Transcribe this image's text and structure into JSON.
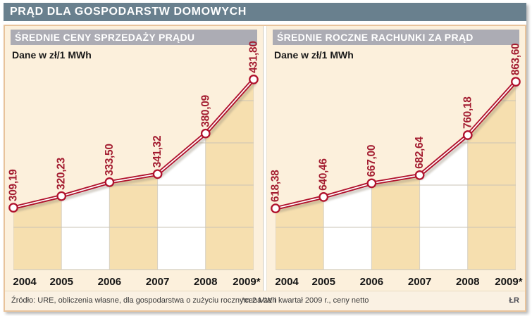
{
  "title": "PRĄD DLA GOSPODARSTW DOMOWYCH",
  "footer": {
    "source": "Źródło: URE, obliczenia własne, dla gospodarstwa o zużyciu rocznym 2 MWh",
    "note": "*cena za I kwartał 2009 r., ceny netto",
    "credit": "ŁR"
  },
  "colors": {
    "line": "#B0122D",
    "value_label": "#A31C30",
    "band_tan": "#F6DFAF",
    "band_white": "#FFFFFF",
    "band_edge": "#D9D2C2",
    "grid": "#C9C3B5",
    "title_bar": "#69808E",
    "chart_header": "#ACACB4",
    "panel_bg": "#FCF0DC",
    "panel_border": "#E8C39B"
  },
  "chart_data": [
    {
      "type": "line",
      "title": "ŚREDNIE CENY SPRZEDAŻY PRĄDU",
      "subtitle": "Dane w zł/1 MWh",
      "categories": [
        "2004",
        "2005",
        "2006",
        "2007",
        "2008",
        "2009*"
      ],
      "values": [
        309.19,
        320.23,
        333.5,
        341.32,
        380.09,
        431.8
      ],
      "labels": [
        "309,19",
        "320,23",
        "333,50",
        "341,32",
        "380,09",
        "431,80"
      ],
      "ylabel": "zł/1 MWh",
      "ylim": [
        250,
        460
      ],
      "grid": "horizontal-below-line",
      "legend": "none",
      "marker": "circle",
      "area_fill": "alternating tan/white vertical bands under line"
    },
    {
      "type": "line",
      "title": "ŚREDNIE ROCZNE RACHUNKI ZA PRĄD",
      "subtitle": "Dane w zł/1 MWh",
      "categories": [
        "2004",
        "2005",
        "2006",
        "2007",
        "2008",
        "2009*"
      ],
      "values": [
        618.38,
        640.46,
        667.0,
        682.64,
        760.18,
        863.6
      ],
      "labels": [
        "618,38",
        "640,46",
        "667,00",
        "682,64",
        "760,18",
        "863,60"
      ],
      "ylabel": "zł/1 MWh",
      "ylim": [
        500,
        925
      ],
      "grid": "horizontal-below-line",
      "legend": "none",
      "marker": "circle",
      "area_fill": "alternating tan/white vertical bands under line"
    }
  ]
}
